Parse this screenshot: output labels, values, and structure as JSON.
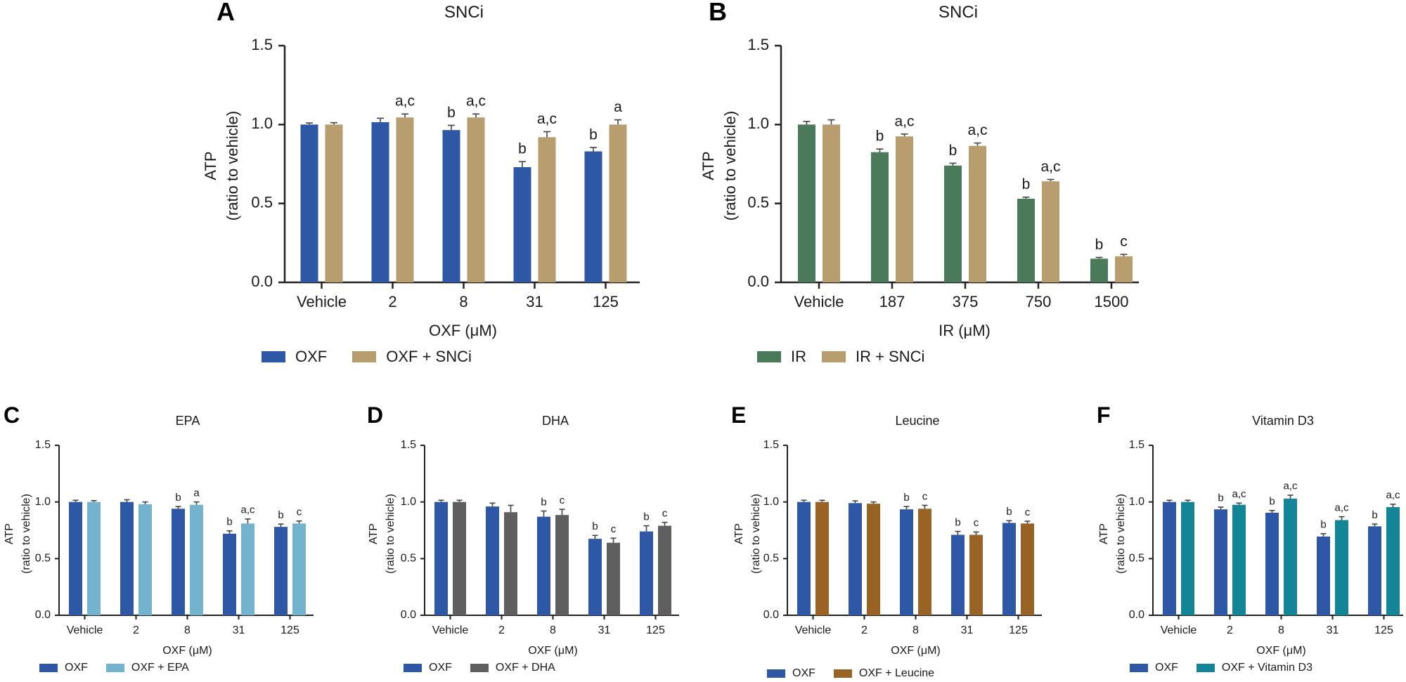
{
  "colors": {
    "oxf": "#2E58A6",
    "snci": "#B89E6E",
    "ir": "#4A7A5A",
    "epa": "#74B3CE",
    "dha": "#5F5F5F",
    "leucine": "#9A6326",
    "vitd3": "#138596",
    "axis": "#222222",
    "error": "#444444"
  },
  "panels": [
    {
      "letter": "A",
      "chart_data": {
        "type": "bar",
        "title": "SNCi",
        "xlabel": "OXF (μM)",
        "ylabel": "ATP",
        "ylabel2": "(ratio to vehicle)",
        "ylim": [
          0,
          1.5
        ],
        "yticks": [
          "0.0",
          "0.5",
          "1.0",
          "1.5"
        ],
        "categories": [
          "Vehicle",
          "2",
          "8",
          "31",
          "125"
        ],
        "series": [
          {
            "name": "OXF",
            "color_key": "oxf",
            "values": [
              1.0,
              1.015,
              0.965,
              0.73,
              0.83
            ],
            "errors": [
              0.01,
              0.025,
              0.03,
              0.035,
              0.025
            ],
            "labels": [
              "",
              "",
              "b",
              "b",
              "b"
            ]
          },
          {
            "name": "OXF + SNCi",
            "color_key": "snci",
            "values": [
              1.0,
              1.045,
              1.045,
              0.92,
              1.0
            ],
            "errors": [
              0.012,
              0.022,
              0.022,
              0.035,
              0.03
            ],
            "labels": [
              "",
              "a,c",
              "a,c",
              "a,c",
              "a"
            ]
          }
        ]
      }
    },
    {
      "letter": "B",
      "chart_data": {
        "type": "bar",
        "title": "SNCi",
        "xlabel": "IR (μM)",
        "ylabel": "ATP",
        "ylabel2": "(ratio to vehicle)",
        "ylim": [
          0,
          1.5
        ],
        "yticks": [
          "0.0",
          "0.5",
          "1.0",
          "1.5"
        ],
        "categories": [
          "Vehicle",
          "187",
          "375",
          "750",
          "1500"
        ],
        "series": [
          {
            "name": "IR",
            "color_key": "ir",
            "values": [
              1.0,
              0.825,
              0.74,
              0.53,
              0.15
            ],
            "errors": [
              0.02,
              0.02,
              0.015,
              0.01,
              0.008
            ],
            "labels": [
              "",
              "b",
              "b",
              "b",
              "b"
            ]
          },
          {
            "name": "IR + SNCi",
            "color_key": "snci",
            "values": [
              1.0,
              0.925,
              0.865,
              0.64,
              0.165
            ],
            "errors": [
              0.03,
              0.015,
              0.018,
              0.012,
              0.012
            ],
            "labels": [
              "",
              "a,c",
              "a,c",
              "a,c",
              "c"
            ]
          }
        ]
      }
    },
    {
      "letter": "C",
      "chart_data": {
        "type": "bar",
        "title": "EPA",
        "xlabel": "OXF (μM)",
        "ylabel": "ATP",
        "ylabel2": "(ratio to vehicle)",
        "ylim": [
          0,
          1.5
        ],
        "yticks": [
          "0.0",
          "0.5",
          "1.0",
          "1.5"
        ],
        "categories": [
          "Vehicle",
          "2",
          "8",
          "31",
          "125"
        ],
        "series": [
          {
            "name": "OXF",
            "color_key": "oxf",
            "values": [
              1.0,
              1.0,
              0.94,
              0.72,
              0.78
            ],
            "errors": [
              0.015,
              0.02,
              0.02,
              0.025,
              0.025
            ],
            "labels": [
              "",
              "",
              "b",
              "b",
              "b"
            ]
          },
          {
            "name": "OXF + EPA",
            "color_key": "epa",
            "values": [
              1.0,
              0.98,
              0.975,
              0.81,
              0.81
            ],
            "errors": [
              0.012,
              0.02,
              0.025,
              0.04,
              0.022
            ],
            "labels": [
              "",
              "",
              "a",
              "a,c",
              "c"
            ]
          }
        ]
      }
    },
    {
      "letter": "D",
      "chart_data": {
        "type": "bar",
        "title": "DHA",
        "xlabel": "OXF (μM)",
        "ylabel": "ATP",
        "ylabel2": "(ratio to vehicle)",
        "ylim": [
          0,
          1.5
        ],
        "yticks": [
          "0.0",
          "0.5",
          "1.0",
          "1.5"
        ],
        "categories": [
          "Vehicle",
          "2",
          "8",
          "31",
          "125"
        ],
        "series": [
          {
            "name": "OXF",
            "color_key": "oxf",
            "values": [
              1.0,
              0.96,
              0.87,
              0.675,
              0.74
            ],
            "errors": [
              0.015,
              0.03,
              0.05,
              0.03,
              0.05
            ],
            "labels": [
              "",
              "",
              "b",
              "b",
              "b"
            ]
          },
          {
            "name": "OXF + DHA",
            "color_key": "dha",
            "values": [
              1.0,
              0.91,
              0.885,
              0.64,
              0.79
            ],
            "errors": [
              0.015,
              0.06,
              0.05,
              0.04,
              0.03
            ],
            "labels": [
              "",
              "",
              "c",
              "c",
              "c"
            ]
          }
        ]
      }
    },
    {
      "letter": "E",
      "chart_data": {
        "type": "bar",
        "title": "Leucine",
        "xlabel": "OXF (μM)",
        "ylabel": "ATP",
        "ylabel2": "(ratio to vehicle)",
        "ylim": [
          0,
          1.5
        ],
        "yticks": [
          "0.0",
          "0.5",
          "1.0",
          "1.5"
        ],
        "categories": [
          "Vehicle",
          "2",
          "8",
          "31",
          "125"
        ],
        "series": [
          {
            "name": "OXF",
            "color_key": "oxf",
            "values": [
              1.0,
              0.99,
              0.935,
              0.71,
              0.815
            ],
            "errors": [
              0.015,
              0.02,
              0.025,
              0.03,
              0.02
            ],
            "labels": [
              "",
              "",
              "b",
              "b",
              "b"
            ]
          },
          {
            "name": "OXF + Leucine",
            "color_key": "leucine",
            "values": [
              1.0,
              0.985,
              0.94,
              0.71,
              0.81
            ],
            "errors": [
              0.015,
              0.015,
              0.03,
              0.025,
              0.02
            ],
            "labels": [
              "",
              "",
              "c",
              "c",
              "c"
            ]
          }
        ]
      }
    },
    {
      "letter": "F",
      "chart_data": {
        "type": "bar",
        "title": "Vitamin D3",
        "xlabel": "OXF (μM)",
        "ylabel": "ATP",
        "ylabel2": "(ratio to vehicle)",
        "ylim": [
          0,
          1.5
        ],
        "yticks": [
          "0.0",
          "0.5",
          "1.0",
          "1.5"
        ],
        "categories": [
          "Vehicle",
          "2",
          "8",
          "31",
          "125"
        ],
        "series": [
          {
            "name": "OXF",
            "color_key": "oxf",
            "values": [
              1.0,
              0.935,
              0.905,
              0.695,
              0.785
            ],
            "errors": [
              0.015,
              0.02,
              0.02,
              0.025,
              0.02
            ],
            "labels": [
              "",
              "b",
              "b",
              "b",
              "b"
            ]
          },
          {
            "name": "OXF + Vitamin D3",
            "color_key": "vitd3",
            "values": [
              1.0,
              0.975,
              1.03,
              0.84,
              0.955
            ],
            "errors": [
              0.015,
              0.015,
              0.03,
              0.03,
              0.025
            ],
            "labels": [
              "",
              "a,c",
              "a,c",
              "a,c",
              "a,c"
            ]
          }
        ]
      }
    }
  ]
}
